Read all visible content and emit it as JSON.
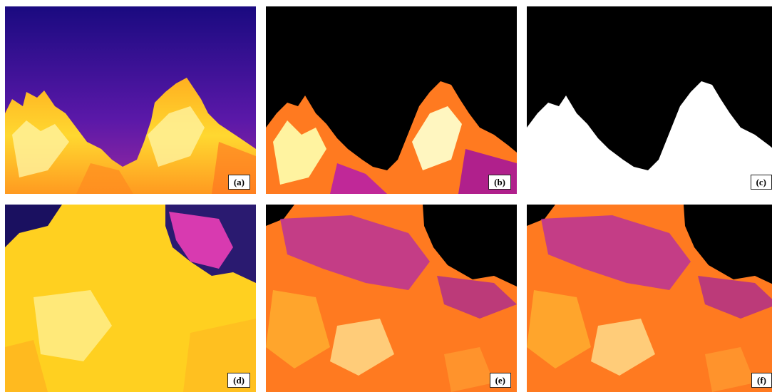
{
  "panels": [
    {
      "id": "a",
      "label": "(a)"
    },
    {
      "id": "b",
      "label": "(b)"
    },
    {
      "id": "c",
      "label": "(c)"
    },
    {
      "id": "d",
      "label": "(d)"
    },
    {
      "id": "e",
      "label": "(e)"
    },
    {
      "id": "f",
      "label": "(f)"
    }
  ],
  "colors": {
    "sky_top": "#1c0b8a",
    "sky_bottom": "#8a1fa8",
    "hot_yellow": "#ffd21a",
    "hot_white": "#fff6b0",
    "warm_orange": "#ff7a1a",
    "magenta": "#b01ca8",
    "black": "#000000",
    "white": "#ffffff"
  }
}
